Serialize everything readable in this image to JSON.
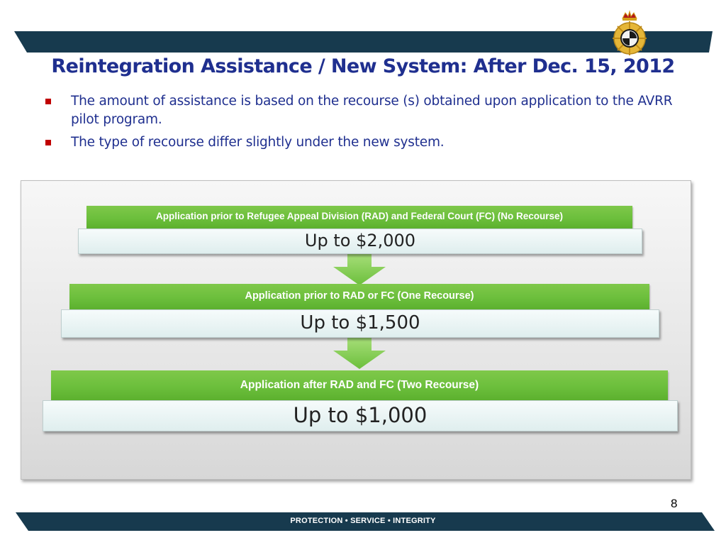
{
  "slide": {
    "title": "Reintegration Assistance / New System: After Dec. 15, 2012",
    "bullets": [
      "The amount of assistance is based on the recourse (s) obtained upon application to the AVRR pilot program.",
      "The type of recourse differ slightly under the new system."
    ],
    "steps": [
      {
        "heading": "Application  prior to Refugee Appeal Division (RAD) and Federal Court (FC) (No Recourse)",
        "amount": "Up to $2,000"
      },
      {
        "heading": "Application  prior to RAD or FC (One Recourse)",
        "amount": "Up to $1,500"
      },
      {
        "heading": "Application after RAD and FC (Two Recourse)",
        "amount": "Up to $1,000"
      }
    ],
    "page_number": "8",
    "footer": "PROTECTION • SERVICE • INTEGRITY"
  },
  "colors": {
    "band": "#173a4e",
    "title": "#1f2f8f",
    "bullet_marker": "#c00000",
    "step_green": "#6cbf3c",
    "arrow_green": "#8ed45a"
  },
  "icons": [
    "agency-emblem-icon",
    "square-bullet-icon",
    "down-arrow-icon"
  ]
}
